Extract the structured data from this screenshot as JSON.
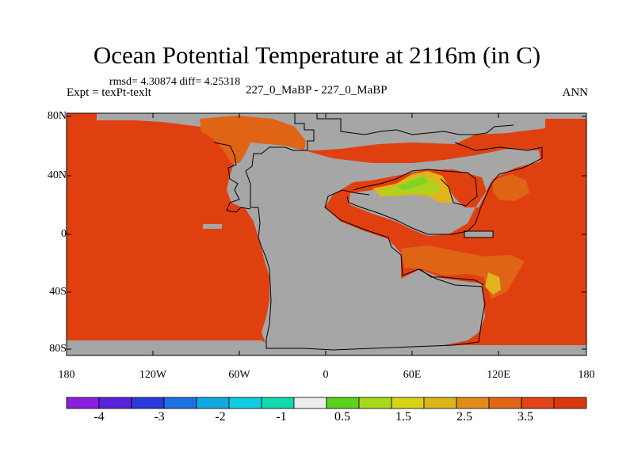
{
  "title": "Ocean Potential Temperature at 2116m (in C)",
  "stats": "rmsd= 4.30874 diff= 4.25318",
  "expt": "Expt = texPt-texlt",
  "center_label": "227_0_MaBP - 227_0_MaBP",
  "season": "ANN",
  "y_ticks": [
    "80N",
    "40N",
    "0",
    "40S",
    "80S"
  ],
  "x_ticks": [
    "180",
    "120W",
    "60W",
    "0",
    "60E",
    "120E",
    "180"
  ],
  "colorbar": {
    "colors": [
      "#8a1fe0",
      "#5a22d8",
      "#2a3ad8",
      "#1e72e0",
      "#12a8e4",
      "#10cce0",
      "#12d8b0",
      "#ececec",
      "#5ad21e",
      "#aad81e",
      "#d8d218",
      "#dcb41c",
      "#e08c1c",
      "#e06614",
      "#e04414",
      "#d83a10"
    ],
    "labels": [
      "-4",
      "-3",
      "-2",
      "-1",
      "0.5",
      "1.5",
      "2.5",
      "3.5"
    ]
  },
  "colors": {
    "ocean": "#e0400f",
    "land": "#a6a6a6",
    "warm": "#e06416",
    "yellow": "#e0b41c",
    "green": "#7fd423",
    "outline": "#000000"
  }
}
